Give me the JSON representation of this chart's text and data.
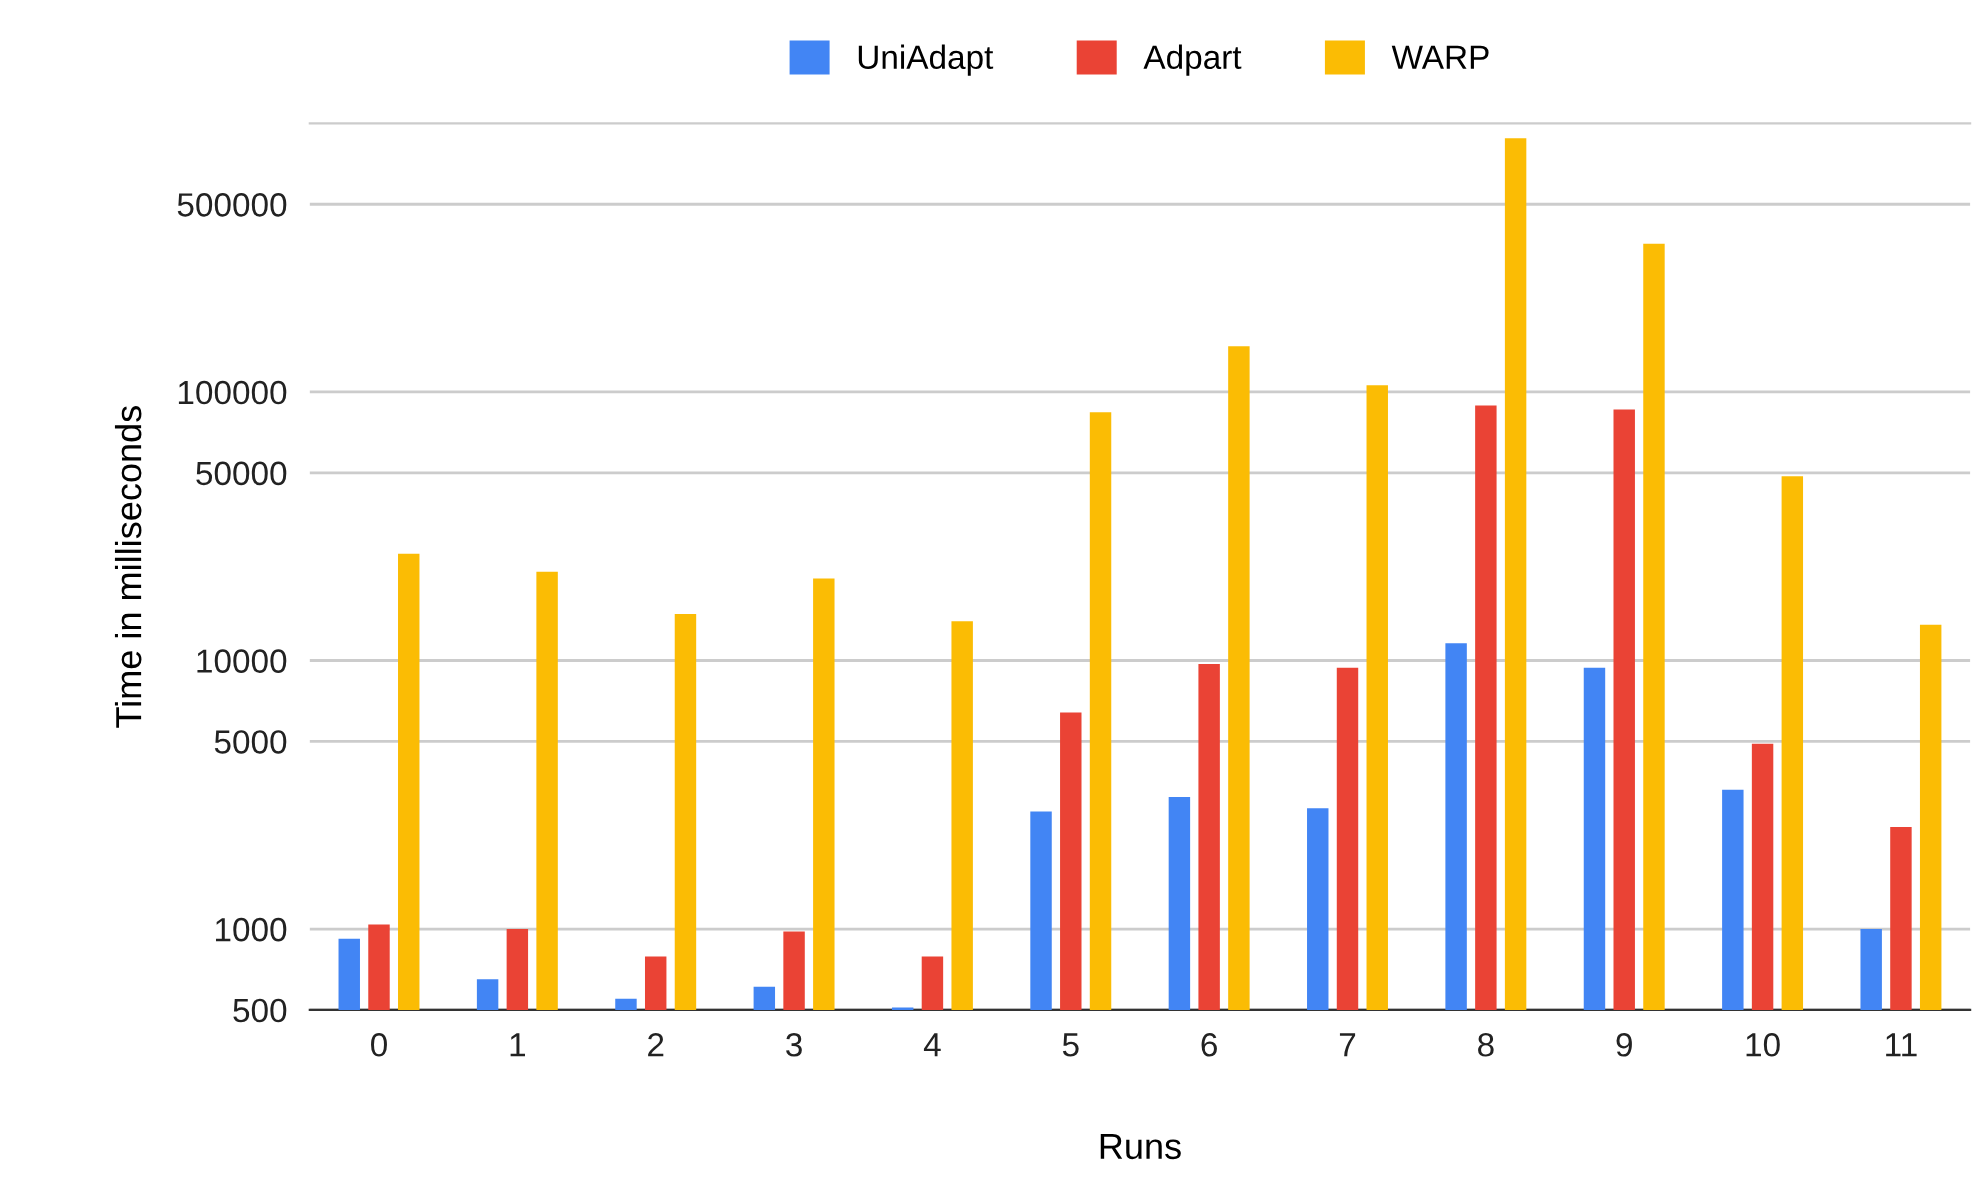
{
  "chart_data": {
    "type": "bar",
    "xlabel": "Runs",
    "ylabel": "Time in milliseconds",
    "categories": [
      "0",
      "1",
      "2",
      "3",
      "4",
      "5",
      "6",
      "7",
      "8",
      "9",
      "10",
      "11"
    ],
    "series": [
      {
        "name": "UniAdapt",
        "color": "#4285f4",
        "values": [
          920,
          650,
          550,
          610,
          510,
          2740,
          3100,
          2820,
          11600,
          9400,
          3300,
          1000
        ]
      },
      {
        "name": "Adpart",
        "color": "#ea4335",
        "values": [
          1040,
          1000,
          790,
          980,
          790,
          6400,
          9700,
          9400,
          89000,
          86000,
          4900,
          2400
        ]
      },
      {
        "name": "WARP",
        "color": "#fbbc04",
        "values": [
          25000,
          21400,
          14900,
          20200,
          14000,
          84000,
          148000,
          106000,
          880000,
          356000,
          48500,
          13600
        ]
      }
    ],
    "log": "y",
    "ylim": [
      500,
      1000000
    ],
    "yticks": [
      500,
      1000,
      5000,
      10000,
      50000,
      100000,
      500000
    ],
    "grid": "y",
    "legend": "top"
  }
}
